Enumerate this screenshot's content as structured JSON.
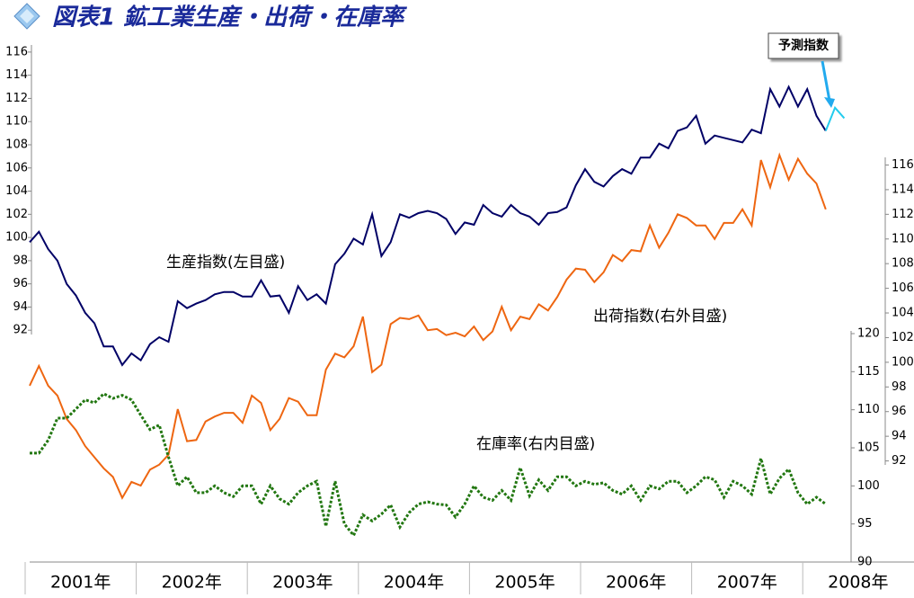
{
  "chart_data": {
    "type": "line",
    "title": "図表1 鉱工業生産・出荷・在庫率",
    "x_labels": [
      "2001年",
      "2002年",
      "2003年",
      "2004年",
      "2005年",
      "2006年",
      "2007年",
      "2008年"
    ],
    "ylim": [
      72,
      117
    ],
    "yticks": [
      92,
      94,
      96,
      98,
      100,
      102,
      104,
      106,
      108,
      110,
      112,
      114,
      116
    ],
    "y2lim": [
      83.8,
      126.1
    ],
    "y2ticks": [
      92,
      94,
      96,
      98,
      100,
      102,
      104,
      106,
      108,
      110,
      112,
      114,
      116
    ],
    "y3lim": [
      90,
      158.5
    ],
    "y3ticks": [
      90,
      95,
      100,
      105,
      110,
      115,
      120
    ],
    "series": [
      {
        "name": "生産指数(左目盛)",
        "color": "#000066",
        "axis": "y",
        "values": [
          99.6,
          100.5,
          99,
          98,
          96,
          95,
          93.5,
          92.6,
          90.6,
          90.6,
          89,
          90,
          89.4,
          90.8,
          91.4,
          91,
          94.5,
          93.9,
          94.3,
          94.6,
          95.1,
          95.3,
          95.3,
          94.9,
          94.9,
          96.3,
          94.9,
          95,
          93.5,
          95.8,
          94.6,
          95.1,
          94.3,
          97.7,
          98.6,
          99.9,
          99.4,
          102,
          98.4,
          99.6,
          102,
          101.7,
          102.1,
          102.3,
          102.1,
          101.6,
          100.3,
          101.3,
          101.1,
          102.8,
          102.1,
          101.8,
          102.8,
          102.1,
          101.8,
          101.1,
          102.1,
          102.2,
          102.6,
          104.5,
          105.9,
          104.8,
          104.4,
          105.3,
          105.9,
          105.5,
          106.9,
          106.9,
          108.1,
          107.7,
          109.2,
          109.5,
          110.5,
          108.1,
          108.8,
          108.6,
          108.4,
          108.2,
          109.3,
          109,
          112.8,
          111.3,
          113,
          111.3,
          112.8,
          110.5,
          109.2
        ]
      },
      {
        "name": "予測指数",
        "color": "#22ccee",
        "axis": "y",
        "values": [
          null,
          null,
          null,
          null,
          null,
          null,
          null,
          null,
          null,
          null,
          null,
          null,
          null,
          null,
          null,
          null,
          null,
          null,
          null,
          null,
          null,
          null,
          null,
          null,
          null,
          null,
          null,
          null,
          null,
          null,
          null,
          null,
          null,
          null,
          null,
          null,
          null,
          null,
          null,
          null,
          null,
          null,
          null,
          null,
          null,
          null,
          null,
          null,
          null,
          null,
          null,
          null,
          null,
          null,
          null,
          null,
          null,
          null,
          null,
          null,
          null,
          null,
          null,
          null,
          null,
          null,
          null,
          null,
          null,
          null,
          null,
          null,
          null,
          null,
          null,
          null,
          null,
          null,
          null,
          null,
          null,
          null,
          null,
          null,
          null,
          null,
          109.2,
          111.2,
          110.3
        ]
      },
      {
        "name": "出荷指数(右外目盛)",
        "color": "#ee6611",
        "axis": "y2",
        "values": [
          98.1,
          99.7,
          98.1,
          97.3,
          95.4,
          94.5,
          93.2,
          92.3,
          91.4,
          90.7,
          89,
          90.3,
          90,
          91.3,
          91.7,
          92.5,
          96.2,
          93.6,
          93.7,
          95.2,
          95.6,
          95.9,
          95.9,
          95.1,
          97.3,
          96.7,
          94.5,
          95.4,
          97.1,
          96.8,
          95.7,
          95.7,
          99.4,
          100.7,
          100.4,
          101.3,
          103.7,
          99.2,
          99.8,
          103.1,
          103.6,
          103.5,
          103.8,
          102.6,
          102.7,
          102.2,
          102.4,
          102.1,
          102.9,
          101.8,
          102.5,
          104.5,
          102.6,
          103.7,
          103.5,
          104.7,
          104.2,
          105.3,
          106.7,
          107.6,
          107.5,
          106.5,
          107.3,
          108.7,
          108.2,
          109.1,
          109,
          111.1,
          109.3,
          110.5,
          112,
          111.7,
          111.1,
          111.1,
          110,
          111.3,
          111.3,
          112.4,
          111.1,
          116.4,
          114.2,
          116.8,
          114.8,
          116.5,
          115.3,
          114.5,
          112.4
        ]
      },
      {
        "name": "在庫率(右内目盛)",
        "color": "#227711",
        "axis": "y3",
        "values": [
          104.3,
          104.3,
          106,
          108.9,
          108.9,
          110.1,
          111.3,
          110.9,
          112.1,
          111.5,
          111.9,
          111.3,
          109.3,
          107.4,
          108,
          103.8,
          100,
          101.2,
          99.1,
          99.1,
          100,
          99.1,
          98.6,
          100,
          100,
          97.6,
          100,
          98.3,
          97.6,
          99.1,
          100,
          100.6,
          94.7,
          100.6,
          95,
          93.5,
          96.2,
          95.4,
          96.3,
          97.5,
          94.6,
          96.5,
          97.6,
          97.9,
          97.6,
          97.5,
          95.9,
          97.6,
          100,
          98.5,
          98.1,
          99.4,
          98.1,
          102.4,
          98.7,
          100.8,
          99.4,
          101.2,
          101.2,
          100,
          100.6,
          100.2,
          100.4,
          99.4,
          98.9,
          100,
          98.1,
          100,
          99.6,
          100.6,
          100.6,
          99.1,
          100,
          101.2,
          100.8,
          98.5,
          100.6,
          100,
          98.9,
          103.6,
          98.9,
          101,
          102.2,
          99.1,
          97.6,
          98.5,
          97.6
        ]
      }
    ]
  }
}
